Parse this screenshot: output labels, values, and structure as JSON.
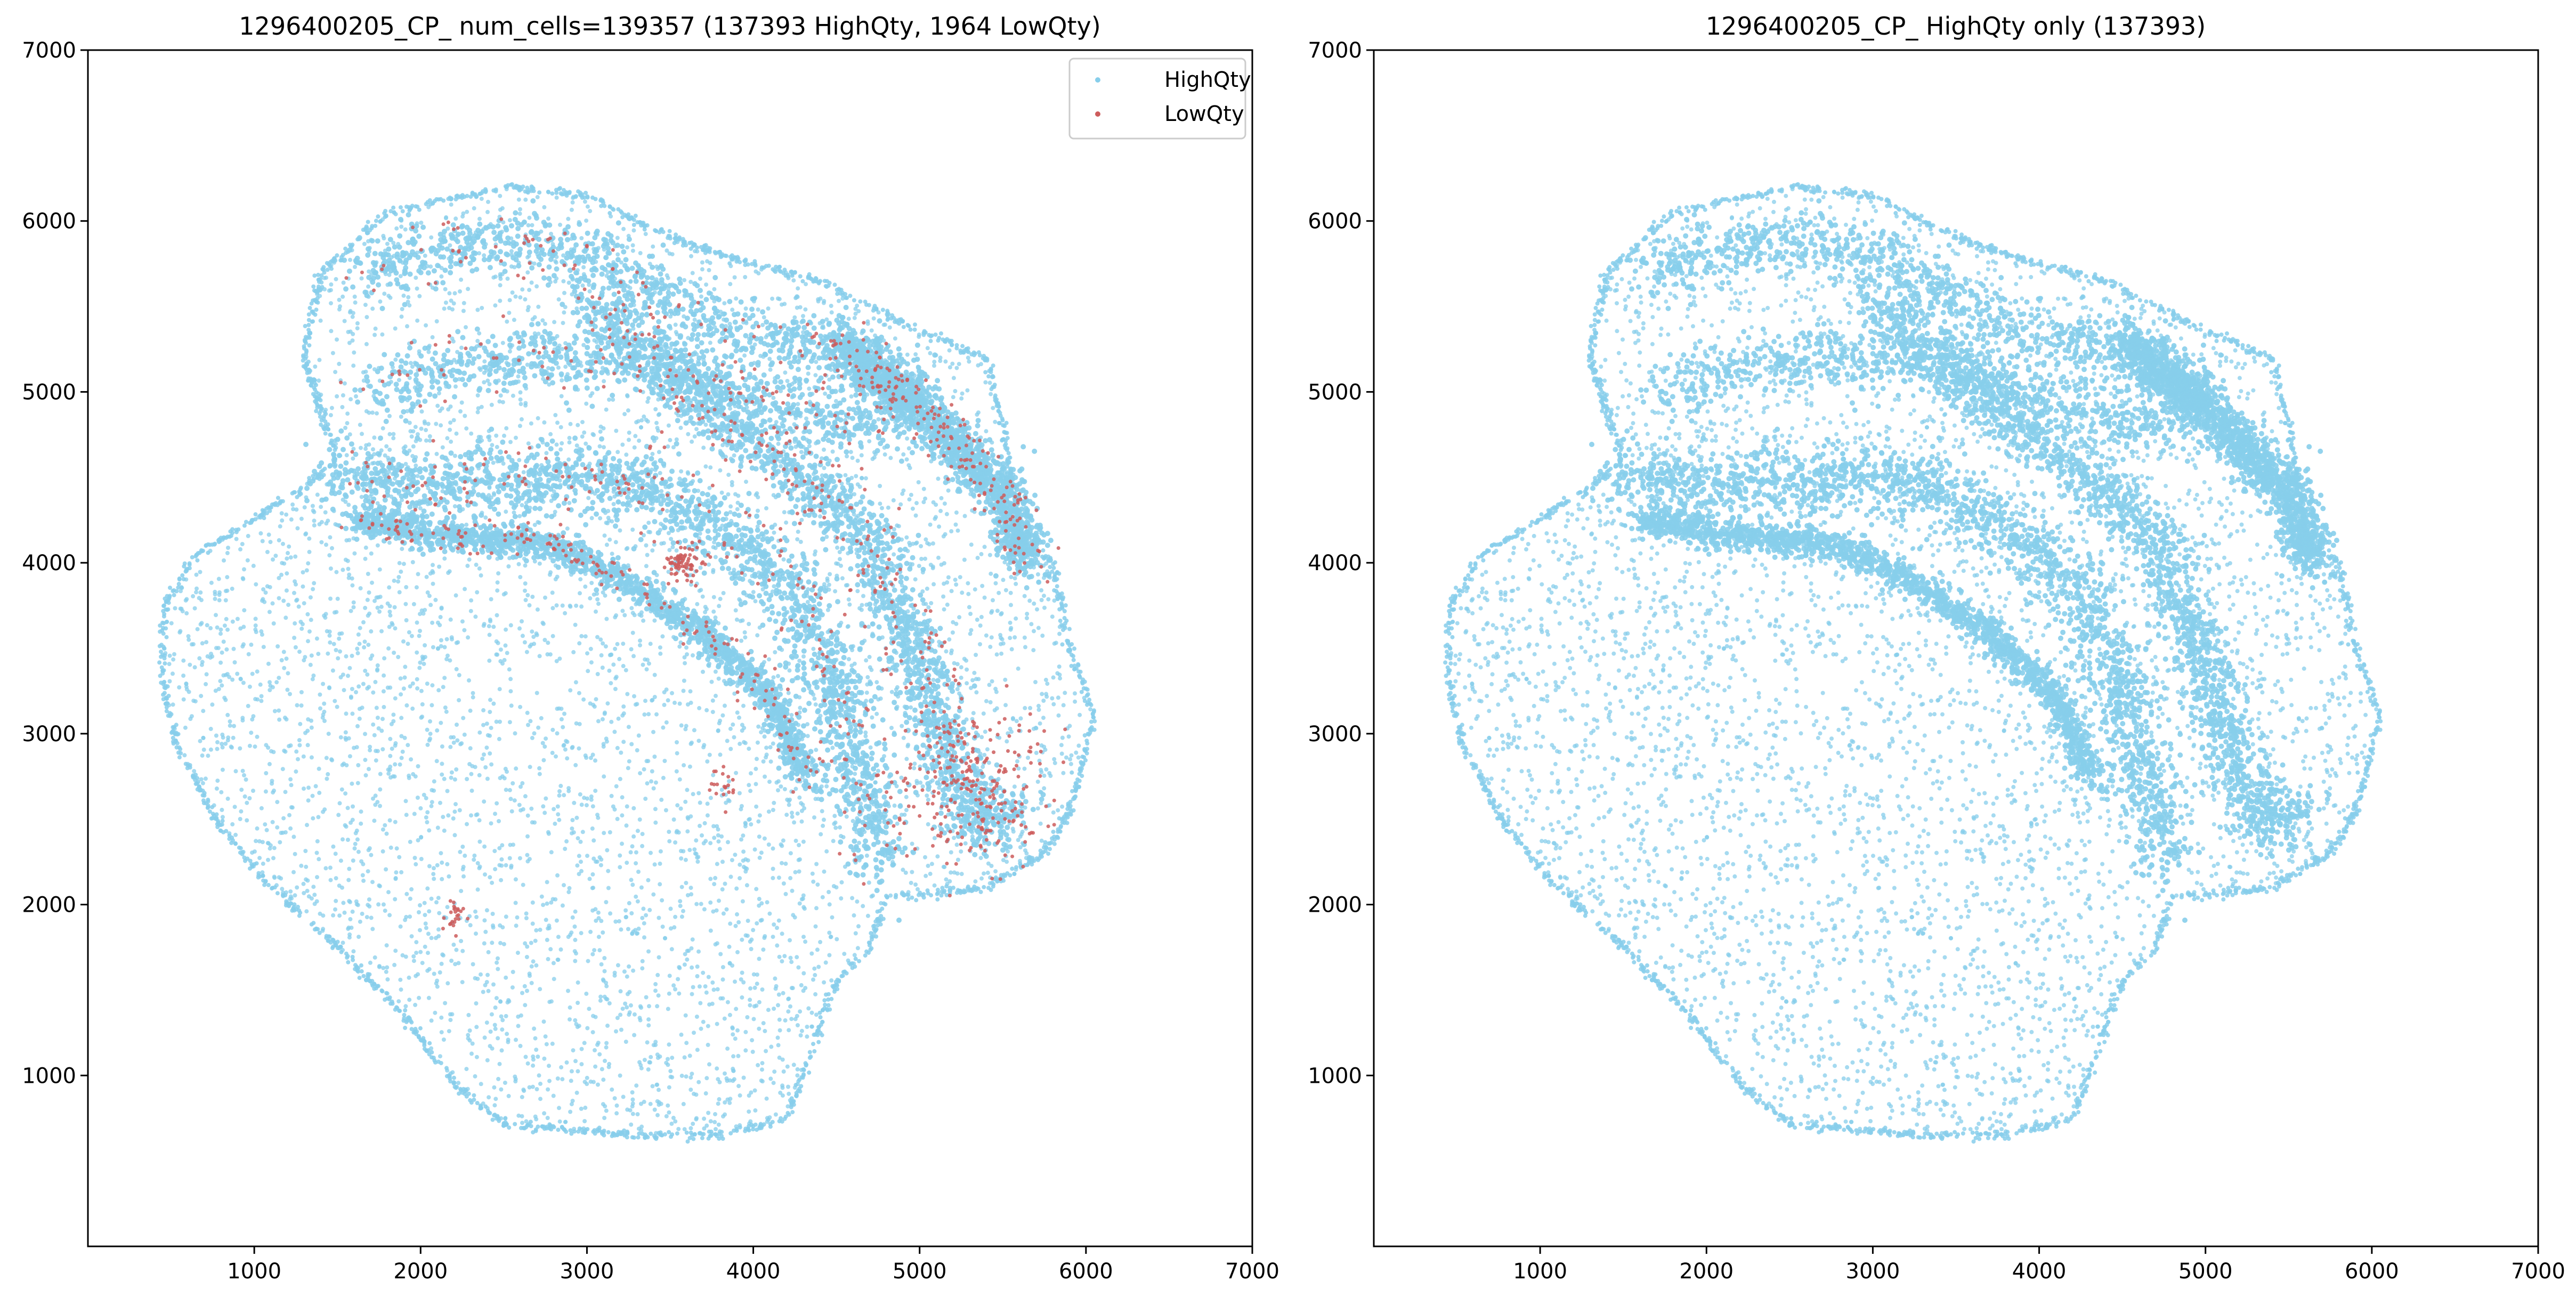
{
  "chart_data": [
    {
      "type": "scatter",
      "title": "1296400205_CP_ num_cells=139357 (137393 HighQty, 1964 LowQty)",
      "xlim": [
        0,
        7000
      ],
      "ylim": [
        0,
        7000
      ],
      "x_ticks": [
        1000,
        2000,
        3000,
        4000,
        5000,
        6000,
        7000
      ],
      "y_ticks": [
        1000,
        2000,
        3000,
        4000,
        5000,
        6000,
        7000
      ],
      "x_tick_labels": [
        "1000",
        "2000",
        "3000",
        "4000",
        "5000",
        "6000",
        "7000"
      ],
      "y_tick_labels": [
        "1000",
        "2000",
        "3000",
        "4000",
        "5000",
        "6000",
        "7000"
      ],
      "legend_position": "top-right",
      "series": [
        {
          "name": "HighQty",
          "count": 137393,
          "color": "#87ceeb"
        },
        {
          "name": "LowQty",
          "count": 1964,
          "color": "#cd5c5c"
        }
      ]
    },
    {
      "type": "scatter",
      "title": "1296400205_CP_ HighQty only (137393)",
      "xlim": [
        0,
        7000
      ],
      "ylim": [
        0,
        7000
      ],
      "x_ticks": [
        1000,
        2000,
        3000,
        4000,
        5000,
        6000,
        7000
      ],
      "y_ticks": [
        1000,
        2000,
        3000,
        4000,
        5000,
        6000,
        7000
      ],
      "x_tick_labels": [
        "1000",
        "2000",
        "3000",
        "4000",
        "5000",
        "6000",
        "7000"
      ],
      "y_tick_labels": [
        "1000",
        "2000",
        "3000",
        "4000",
        "5000",
        "6000",
        "7000"
      ],
      "series": [
        {
          "name": "HighQty",
          "count": 137393,
          "color": "#87ceeb"
        }
      ]
    }
  ],
  "tissue": {
    "outline": [
      [
        460,
        3750
      ],
      [
        650,
        4050
      ],
      [
        1000,
        4250
      ],
      [
        1300,
        4450
      ],
      [
        1500,
        4600
      ],
      [
        1300,
        5200
      ],
      [
        1400,
        5700
      ],
      [
        1800,
        6050
      ],
      [
        2500,
        6200
      ],
      [
        3000,
        6150
      ],
      [
        3400,
        5950
      ],
      [
        3800,
        5800
      ],
      [
        4400,
        5650
      ],
      [
        4900,
        5400
      ],
      [
        5400,
        5200
      ],
      [
        5500,
        4800
      ],
      [
        5600,
        4150
      ],
      [
        5800,
        4000
      ],
      [
        5900,
        3500
      ],
      [
        6050,
        3100
      ],
      [
        5900,
        2550
      ],
      [
        5750,
        2300
      ],
      [
        5400,
        2100
      ],
      [
        5000,
        2050
      ],
      [
        4800,
        2050
      ],
      [
        4700,
        1750
      ],
      [
        4500,
        1550
      ],
      [
        4200,
        750
      ],
      [
        3800,
        650
      ],
      [
        3300,
        650
      ],
      [
        2900,
        680
      ],
      [
        2500,
        720
      ],
      [
        2200,
        950
      ],
      [
        1900,
        1350
      ],
      [
        1500,
        1750
      ],
      [
        1100,
        2100
      ],
      [
        800,
        2450
      ],
      [
        550,
        2900
      ],
      [
        450,
        3300
      ]
    ],
    "bands": [
      {
        "path": [
          [
            1650,
            5700
          ],
          [
            2400,
            5900
          ],
          [
            3100,
            5800
          ],
          [
            3500,
            5500
          ],
          [
            4000,
            5300
          ],
          [
            4600,
            5250
          ],
          [
            5000,
            5000
          ],
          [
            4700,
            4800
          ],
          [
            4100,
            4950
          ],
          [
            3500,
            5150
          ],
          [
            2800,
            5200
          ],
          [
            2200,
            5150
          ],
          [
            1700,
            5000
          ]
        ],
        "width": 90
      },
      {
        "path": [
          [
            1500,
            4500
          ],
          [
            2100,
            4450
          ],
          [
            2700,
            4500
          ],
          [
            3200,
            4500
          ],
          [
            3700,
            4250
          ],
          [
            4200,
            3900
          ],
          [
            4500,
            3300
          ],
          [
            4650,
            2700
          ],
          [
            4750,
            2250
          ]
        ],
        "width": 100
      },
      {
        "path": [
          [
            1600,
            4250
          ],
          [
            2300,
            4150
          ],
          [
            2800,
            4100
          ],
          [
            3200,
            3900
          ],
          [
            3700,
            3600
          ],
          [
            4100,
            3200
          ],
          [
            4350,
            2700
          ]
        ],
        "width": 45
      },
      {
        "path": [
          [
            3000,
            5550
          ],
          [
            3500,
            5100
          ],
          [
            4100,
            4650
          ],
          [
            4700,
            4150
          ],
          [
            5000,
            3400
          ],
          [
            5150,
            2900
          ],
          [
            5350,
            2450
          ],
          [
            5600,
            2600
          ]
        ],
        "width": 90
      },
      {
        "path": [
          [
            4500,
            5300
          ],
          [
            5000,
            4900
          ],
          [
            5500,
            4400
          ],
          [
            5650,
            4000
          ]
        ],
        "width": 70
      }
    ],
    "lowqty_clusters": [
      {
        "center": [
          3580,
          3980
        ],
        "count": 70,
        "spread": 55
      },
      {
        "center": [
          2200,
          1920
        ],
        "count": 24,
        "spread": 45
      },
      {
        "center": [
          3800,
          2700
        ],
        "count": 20,
        "spread": 45
      },
      {
        "center": [
          5300,
          2700
        ],
        "count": 210,
        "spread": 230
      }
    ]
  }
}
